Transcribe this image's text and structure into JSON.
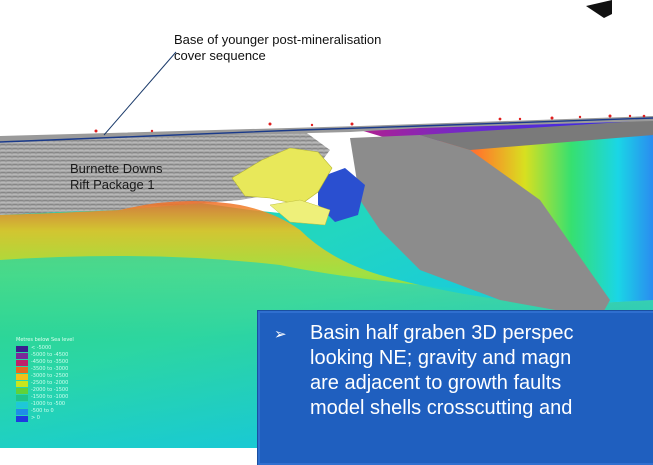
{
  "annotations": {
    "cover_label_line1": "Base of younger post-mineralisation",
    "cover_label_line2": "cover sequence",
    "rift_label_line1": "Burnette Downs",
    "rift_label_line2": "Rift Package 1"
  },
  "legend": {
    "title": "Metres below Sea level",
    "items": [
      {
        "label": "< -5000",
        "color": "#3b1f8f"
      },
      {
        "label": "-5000 to -4500",
        "color": "#7a2a9a"
      },
      {
        "label": "-4500 to -3500",
        "color": "#c0206a"
      },
      {
        "label": "-3500 to -3000",
        "color": "#e86a1e"
      },
      {
        "label": "-3000 to -2500",
        "color": "#f2c21a"
      },
      {
        "label": "-2500 to -2000",
        "color": "#c8e61e"
      },
      {
        "label": "-2000 to -1500",
        "color": "#5fd23a"
      },
      {
        "label": "-1500 to -1000",
        "color": "#1ec48a"
      },
      {
        "label": "-1000 to -500",
        "color": "#1ec8d8"
      },
      {
        "label": "-500 to 0",
        "color": "#1e8ee8"
      },
      {
        "label": "> 0",
        "color": "#1e3ae0"
      }
    ]
  },
  "callout": {
    "bullet": "➢",
    "lines": [
      "Basin half graben 3D perspec",
      "looking NE; gravity and magn",
      "are adjacent to growth faults",
      "model shells crosscutting and"
    ]
  },
  "colors": {
    "callout_bg": "#1f5fbf",
    "cover_layer": "#9a9a9a",
    "fault_plane": "#8c8c8c",
    "body_yellow": "#e8e85a",
    "body_blue": "#2a4fd0"
  }
}
